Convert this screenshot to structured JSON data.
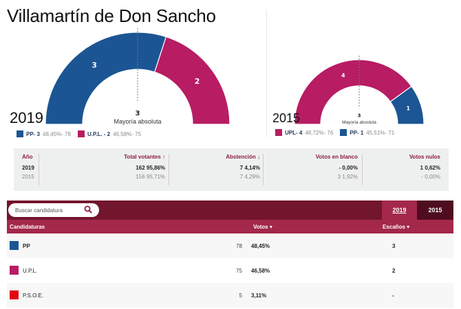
{
  "title": "Villamartín de Don Sancho",
  "majority": {
    "value": "3",
    "label": "Mayoría absoluta"
  },
  "chart_data": [
    {
      "type": "pie",
      "subtype": "hemicycle",
      "title": "2019",
      "total_seats": 5,
      "majority": 3,
      "series": [
        {
          "name": "PP",
          "seats": 3,
          "pct": "48,45%",
          "votes": 78,
          "color": "#1b5593"
        },
        {
          "name": "U.P.L.",
          "seats": 2,
          "pct": "46,58%",
          "votes": 75,
          "color": "#b81c63"
        }
      ],
      "legend": [
        {
          "label": "PP- 3",
          "detail": "48,45%- 78",
          "color": "#1b5593"
        },
        {
          "label": "U.P.L. - 2",
          "detail": "46,58%- 75",
          "color": "#b81c63"
        }
      ],
      "legend_position": "bottom-left"
    },
    {
      "type": "pie",
      "subtype": "hemicycle",
      "title": "2015",
      "total_seats": 5,
      "majority": 3,
      "series": [
        {
          "name": "UPL",
          "seats": 4,
          "pct": "48,72%",
          "votes": 76,
          "color": "#b81c63"
        },
        {
          "name": "PP",
          "seats": 1,
          "pct": "45,51%",
          "votes": 71,
          "color": "#1b5593"
        }
      ],
      "legend": [
        {
          "label": "UPL- 4",
          "detail": "48,72%- 76",
          "color": "#b81c63"
        },
        {
          "label": "PP- 1",
          "detail": "45,51%- 71",
          "color": "#1b5593"
        }
      ],
      "legend_position": "bottom-left"
    }
  ],
  "summary": {
    "headers": {
      "year": "Año",
      "total": "Total votantes ↑",
      "abst": "Abstención ↓",
      "blank": "Votos en blanco",
      "null": "Votos nulos"
    },
    "rows": [
      {
        "year": "2019",
        "total": "162  95,86%",
        "abst": "7  4,14%",
        "blank": "-  0,00%",
        "null": "1  0,62%"
      },
      {
        "year": "2015",
        "total": "156  95,71%",
        "abst": "7  4,29%",
        "blank": "3  1,92%",
        "null": "-  0,00%"
      }
    ]
  },
  "candidates": {
    "search_placeholder": "Buscar candidatura",
    "tabs": [
      {
        "label": "2019",
        "active": true
      },
      {
        "label": "2015",
        "active": false
      }
    ],
    "headers": {
      "name": "Candidaturas",
      "votes": "Votos ▾",
      "seats": "Escaños ▾"
    },
    "rows": [
      {
        "name": "PP",
        "votes": "78",
        "pct": "48,45%",
        "seats": "3",
        "color": "#1b5593"
      },
      {
        "name": "U.P.L.",
        "votes": "75",
        "pct": "46,58%",
        "seats": "2",
        "color": "#b81c63"
      },
      {
        "name": "P.S.O.E.",
        "votes": "5",
        "pct": "3,11%",
        "seats": "-",
        "color": "#e30613"
      }
    ]
  }
}
